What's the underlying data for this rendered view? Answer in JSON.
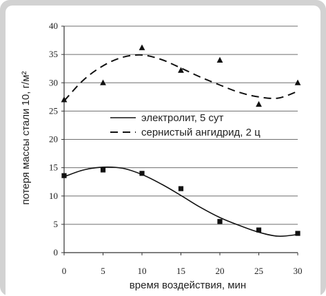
{
  "chart_data": {
    "type": "scatter",
    "title": "",
    "xlabel": "время воздействия, мин",
    "ylabel": "потеря массы стали 10, г/м²",
    "xlim": [
      0,
      30
    ],
    "ylim": [
      0,
      40
    ],
    "x_ticks": [
      0,
      5,
      10,
      15,
      20,
      25,
      30
    ],
    "y_ticks": [
      0,
      5,
      10,
      15,
      20,
      25,
      30,
      35,
      40
    ],
    "grid": "horizontal",
    "legend_position": "center-right",
    "series": [
      {
        "name": "электролит, 5 сут",
        "marker": "square",
        "line_style": "solid",
        "color": "#111111",
        "points": [
          {
            "x": 0,
            "y": 13.6
          },
          {
            "x": 5,
            "y": 14.6
          },
          {
            "x": 10,
            "y": 14.0
          },
          {
            "x": 15,
            "y": 11.3
          },
          {
            "x": 20,
            "y": 5.5
          },
          {
            "x": 25,
            "y": 4.0
          },
          {
            "x": 30,
            "y": 3.4
          }
        ],
        "trend": [
          {
            "x": 0,
            "y": 13.4
          },
          {
            "x": 2.5,
            "y": 14.6
          },
          {
            "x": 5,
            "y": 15.1
          },
          {
            "x": 7.5,
            "y": 14.9
          },
          {
            "x": 10,
            "y": 13.8
          },
          {
            "x": 12.5,
            "y": 12.1
          },
          {
            "x": 15,
            "y": 10.1
          },
          {
            "x": 17.5,
            "y": 8.0
          },
          {
            "x": 20,
            "y": 6.2
          },
          {
            "x": 22.5,
            "y": 4.8
          },
          {
            "x": 25,
            "y": 3.6
          },
          {
            "x": 27.5,
            "y": 2.9
          },
          {
            "x": 30,
            "y": 3.2
          }
        ]
      },
      {
        "name": "сернистый ангидрид, 2 ц",
        "marker": "triangle",
        "line_style": "dashed",
        "color": "#111111",
        "points": [
          {
            "x": 0,
            "y": 27.0
          },
          {
            "x": 5,
            "y": 30.0
          },
          {
            "x": 10,
            "y": 36.2
          },
          {
            "x": 15,
            "y": 32.2
          },
          {
            "x": 20,
            "y": 34.0
          },
          {
            "x": 25,
            "y": 26.2
          },
          {
            "x": 30,
            "y": 30.0
          }
        ],
        "trend": [
          {
            "x": 0,
            "y": 26.8
          },
          {
            "x": 2.5,
            "y": 30.5
          },
          {
            "x": 5,
            "y": 33.0
          },
          {
            "x": 7.5,
            "y": 34.5
          },
          {
            "x": 10,
            "y": 34.9
          },
          {
            "x": 12.5,
            "y": 34.1
          },
          {
            "x": 15,
            "y": 32.6
          },
          {
            "x": 17.5,
            "y": 31.0
          },
          {
            "x": 20,
            "y": 29.6
          },
          {
            "x": 22.5,
            "y": 28.3
          },
          {
            "x": 25,
            "y": 27.5
          },
          {
            "x": 27.5,
            "y": 27.3
          },
          {
            "x": 30,
            "y": 28.5
          }
        ]
      }
    ]
  },
  "colors": {
    "frame": "#d2d2d2",
    "panel": "#ffffff",
    "gridline": "#6e6e6e",
    "ink": "#111111"
  }
}
